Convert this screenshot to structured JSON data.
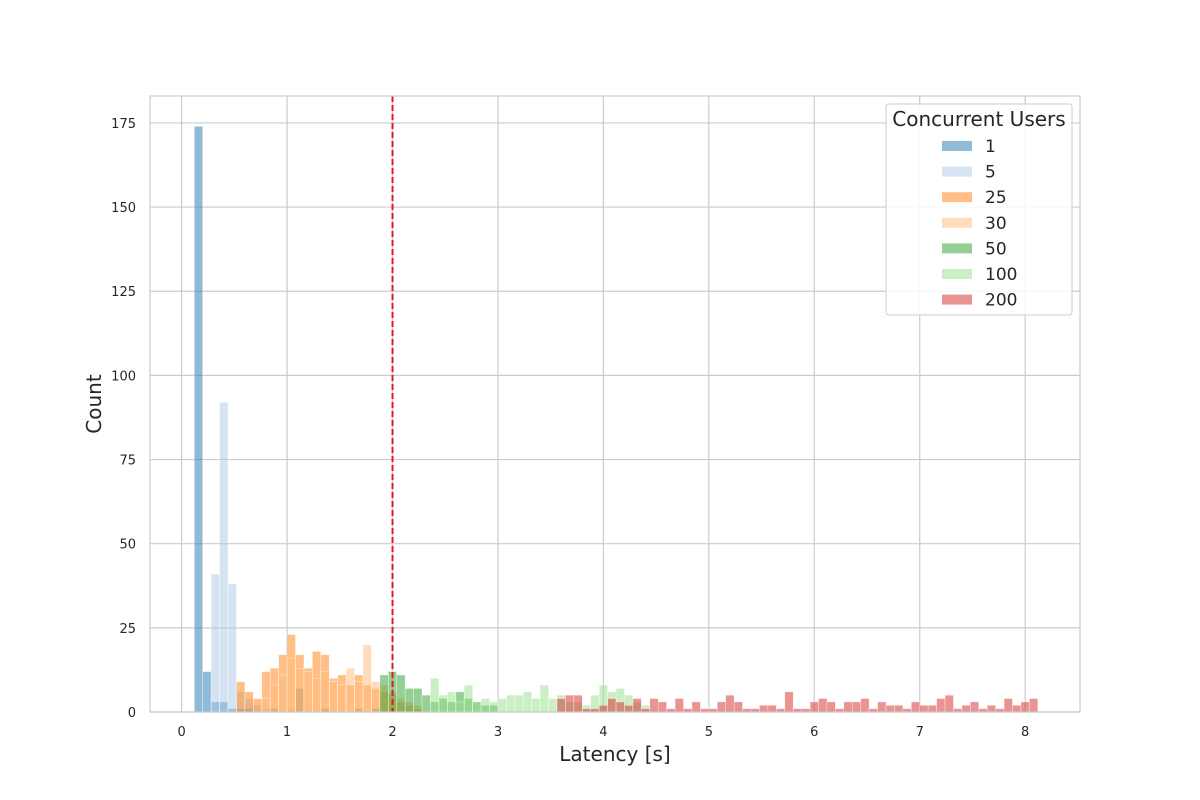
{
  "chart_data": {
    "type": "histogram",
    "xlabel": "Latency [s]",
    "ylabel": "Count",
    "xlim": [
      -0.3,
      8.52
    ],
    "ylim": [
      0,
      183
    ],
    "xticks": [
      0,
      1,
      2,
      3,
      4,
      5,
      6,
      7,
      8
    ],
    "yticks": [
      0,
      25,
      50,
      75,
      100,
      125,
      150,
      175
    ],
    "grid": true,
    "bin_width": 0.08,
    "threshold_line": {
      "x": 2.0,
      "color": "#e41a1c",
      "style": "dashed"
    },
    "legend": {
      "title": "Concurrent Users",
      "position": "top-right"
    },
    "series": [
      {
        "name": "1",
        "color": "#1f77b4",
        "alpha": 0.5,
        "bins": [
          [
            0.12,
            174
          ],
          [
            0.2,
            12
          ],
          [
            0.28,
            3
          ],
          [
            0.36,
            3
          ],
          [
            0.44,
            1
          ],
          [
            0.52,
            1
          ],
          [
            0.6,
            1
          ],
          [
            0.84,
            1
          ],
          [
            1.08,
            7
          ],
          [
            1.32,
            1
          ],
          [
            1.64,
            1
          ],
          [
            1.8,
            1
          ]
        ]
      },
      {
        "name": "5",
        "color": "#aec7e8",
        "alpha": 0.5,
        "bins": [
          [
            0.28,
            41
          ],
          [
            0.36,
            92
          ],
          [
            0.44,
            38
          ],
          [
            0.52,
            6
          ],
          [
            0.6,
            4
          ],
          [
            0.68,
            2
          ],
          [
            0.76,
            1
          ],
          [
            1.0,
            1
          ]
        ]
      },
      {
        "name": "25",
        "color": "#ff7f0e",
        "alpha": 0.5,
        "bins": [
          [
            0.52,
            9
          ],
          [
            0.6,
            6
          ],
          [
            0.68,
            4
          ],
          [
            0.76,
            12
          ],
          [
            0.84,
            13
          ],
          [
            0.92,
            17
          ],
          [
            1.0,
            23
          ],
          [
            1.08,
            17
          ],
          [
            1.16,
            13
          ],
          [
            1.24,
            18
          ],
          [
            1.32,
            17
          ],
          [
            1.4,
            10
          ],
          [
            1.48,
            11
          ],
          [
            1.56,
            8
          ],
          [
            1.64,
            11
          ],
          [
            1.72,
            8
          ],
          [
            1.8,
            7
          ],
          [
            1.88,
            6
          ],
          [
            1.96,
            5
          ],
          [
            2.04,
            3
          ],
          [
            2.12,
            2
          ],
          [
            2.2,
            1
          ]
        ]
      },
      {
        "name": "30",
        "color": "#ffbb78",
        "alpha": 0.5,
        "bins": [
          [
            0.76,
            4
          ],
          [
            0.84,
            8
          ],
          [
            0.92,
            11
          ],
          [
            1.0,
            16
          ],
          [
            1.08,
            13
          ],
          [
            1.16,
            12
          ],
          [
            1.24,
            10
          ],
          [
            1.32,
            12
          ],
          [
            1.4,
            9
          ],
          [
            1.48,
            8
          ],
          [
            1.56,
            13
          ],
          [
            1.64,
            9
          ],
          [
            1.72,
            20
          ],
          [
            1.8,
            9
          ],
          [
            1.88,
            8
          ],
          [
            1.96,
            6
          ],
          [
            2.04,
            4
          ],
          [
            2.12,
            3
          ],
          [
            2.2,
            2
          ]
        ]
      },
      {
        "name": "50",
        "color": "#2ca02c",
        "alpha": 0.5,
        "bins": [
          [
            1.88,
            11
          ],
          [
            1.96,
            12
          ],
          [
            2.04,
            11
          ],
          [
            2.12,
            7
          ],
          [
            2.2,
            7
          ],
          [
            2.28,
            5
          ],
          [
            2.36,
            3
          ],
          [
            2.44,
            4
          ],
          [
            2.52,
            3
          ],
          [
            2.6,
            6
          ],
          [
            2.68,
            4
          ],
          [
            2.76,
            3
          ],
          [
            2.84,
            2
          ],
          [
            2.92,
            2
          ]
        ]
      },
      {
        "name": "100",
        "color": "#98df8a",
        "alpha": 0.5,
        "bins": [
          [
            2.36,
            10
          ],
          [
            2.44,
            5
          ],
          [
            2.52,
            6
          ],
          [
            2.6,
            3
          ],
          [
            2.68,
            8
          ],
          [
            2.76,
            3
          ],
          [
            2.84,
            4
          ],
          [
            2.92,
            3
          ],
          [
            3.0,
            4
          ],
          [
            3.08,
            5
          ],
          [
            3.16,
            5
          ],
          [
            3.24,
            6
          ],
          [
            3.32,
            4
          ],
          [
            3.4,
            8
          ],
          [
            3.48,
            4
          ],
          [
            3.56,
            5
          ],
          [
            3.64,
            3
          ],
          [
            3.72,
            3
          ],
          [
            3.8,
            2
          ],
          [
            3.88,
            5
          ],
          [
            3.96,
            8
          ],
          [
            4.04,
            6
          ],
          [
            4.12,
            7
          ],
          [
            4.2,
            5
          ],
          [
            4.28,
            3
          ],
          [
            4.36,
            2
          ]
        ]
      },
      {
        "name": "200",
        "color": "#d62728",
        "alpha": 0.5,
        "bins": [
          [
            3.56,
            4
          ],
          [
            3.64,
            5
          ],
          [
            3.72,
            5
          ],
          [
            3.8,
            1
          ],
          [
            3.88,
            1
          ],
          [
            3.96,
            2
          ],
          [
            4.04,
            4
          ],
          [
            4.12,
            3
          ],
          [
            4.2,
            2
          ],
          [
            4.28,
            4
          ],
          [
            4.36,
            1
          ],
          [
            4.44,
            4
          ],
          [
            4.52,
            3
          ],
          [
            4.6,
            1
          ],
          [
            4.68,
            4
          ],
          [
            4.76,
            1
          ],
          [
            4.84,
            3
          ],
          [
            4.92,
            1
          ],
          [
            5.0,
            1
          ],
          [
            5.08,
            3
          ],
          [
            5.16,
            5
          ],
          [
            5.24,
            3
          ],
          [
            5.32,
            1
          ],
          [
            5.4,
            1
          ],
          [
            5.48,
            2
          ],
          [
            5.56,
            2
          ],
          [
            5.64,
            1
          ],
          [
            5.72,
            6
          ],
          [
            5.8,
            1
          ],
          [
            5.88,
            1
          ],
          [
            5.96,
            3
          ],
          [
            6.04,
            4
          ],
          [
            6.12,
            3
          ],
          [
            6.2,
            1
          ],
          [
            6.28,
            3
          ],
          [
            6.36,
            3
          ],
          [
            6.44,
            4
          ],
          [
            6.52,
            1
          ],
          [
            6.6,
            3
          ],
          [
            6.68,
            2
          ],
          [
            6.76,
            2
          ],
          [
            6.84,
            1
          ],
          [
            6.92,
            3
          ],
          [
            7.0,
            2
          ],
          [
            7.08,
            2
          ],
          [
            7.16,
            4
          ],
          [
            7.24,
            5
          ],
          [
            7.32,
            1
          ],
          [
            7.4,
            2
          ],
          [
            7.48,
            3
          ],
          [
            7.56,
            1
          ],
          [
            7.64,
            2
          ],
          [
            7.72,
            1
          ],
          [
            7.8,
            4
          ],
          [
            7.88,
            2
          ],
          [
            7.96,
            3
          ],
          [
            8.04,
            4
          ]
        ]
      }
    ]
  }
}
